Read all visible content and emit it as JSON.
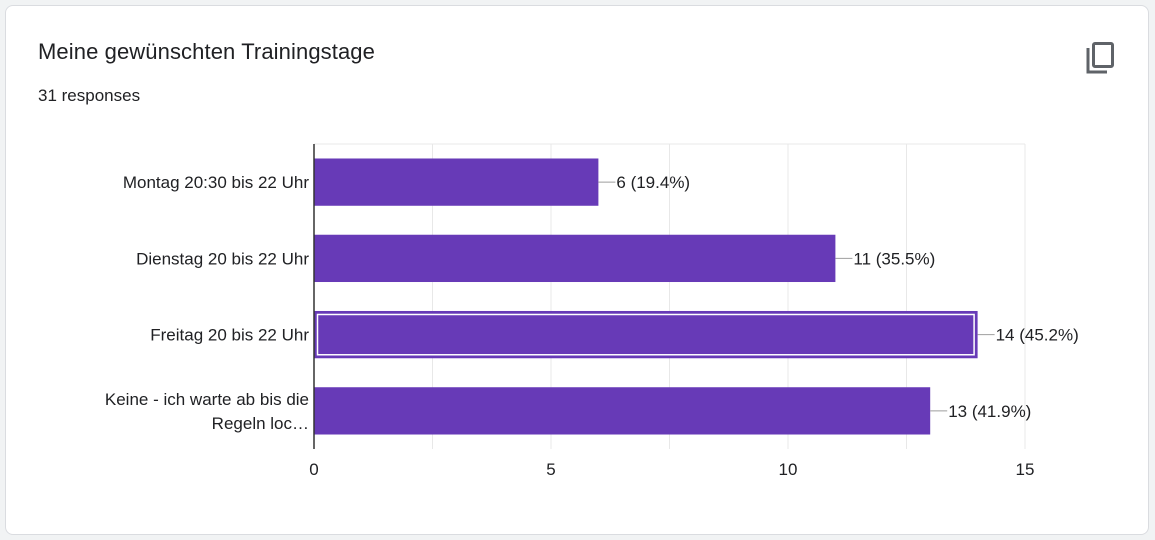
{
  "card": {
    "title": "Meine gewünschten Trainingstage",
    "responses": "31 responses",
    "copy_icon": "copy-icon"
  },
  "colors": {
    "bar": "#673ab7",
    "grid": "#e8e8e8",
    "axis": "#333333",
    "text": "#202124"
  },
  "chart_data": {
    "type": "bar",
    "orientation": "horizontal",
    "title": "Meine gewünschten Trainingstage",
    "categories": [
      [
        "Montag 20:30 bis 22 Uhr"
      ],
      [
        "Dienstag 20 bis 22 Uhr"
      ],
      [
        "Freitag 20 bis 22 Uhr"
      ],
      [
        "Keine - ich warte ab bis die",
        "Regeln loc…"
      ]
    ],
    "values": [
      6,
      11,
      14,
      13
    ],
    "data_labels": [
      "6 (19.4%)",
      "11 (35.5%)",
      "14 (45.2%)",
      "13 (41.9%)"
    ],
    "highlighted_index": 2,
    "xlim": [
      0,
      15
    ],
    "xticks": [
      0,
      5,
      10,
      15
    ],
    "xtick_labels": [
      "0",
      "5",
      "10",
      "15"
    ],
    "grid": true
  }
}
